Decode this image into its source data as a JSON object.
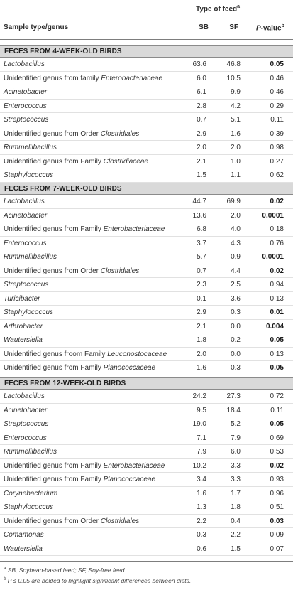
{
  "header": {
    "type_of_feed": "Type of feed",
    "type_of_feed_sup": "a",
    "col_sample": "Sample type/genus",
    "col_sb": "SB",
    "col_sf": "SF",
    "col_p": "P-value",
    "col_p_prefix": "P",
    "col_p_suffix": "-value",
    "col_p_sup": "b"
  },
  "sections": [
    {
      "title": "FECES FROM 4-WEEK-OLD BIRDS",
      "rows": [
        {
          "pre": "",
          "it": "Lactobacillus",
          "sb": "63.6",
          "sf": "46.8",
          "p": "0.05",
          "bold": true
        },
        {
          "pre": "Unidentified genus from family ",
          "it": "Enterobacteriaceae",
          "sb": "6.0",
          "sf": "10.5",
          "p": "0.46",
          "bold": false
        },
        {
          "pre": "",
          "it": "Acinetobacter",
          "sb": "6.1",
          "sf": "9.9",
          "p": "0.46",
          "bold": false
        },
        {
          "pre": "",
          "it": "Enterococcus",
          "sb": "2.8",
          "sf": "4.2",
          "p": "0.29",
          "bold": false
        },
        {
          "pre": "",
          "it": "Streptococcus",
          "sb": "0.7",
          "sf": "5.1",
          "p": "0.11",
          "bold": false
        },
        {
          "pre": "Unidentified genus from Order ",
          "it": "Clostridiales",
          "sb": "2.9",
          "sf": "1.6",
          "p": "0.39",
          "bold": false
        },
        {
          "pre": "",
          "it": "Rummeliibacillus",
          "sb": "2.0",
          "sf": "2.0",
          "p": "0.98",
          "bold": false
        },
        {
          "pre": "Unidentified genus from Family ",
          "it": "Clostridiaceae",
          "sb": "2.1",
          "sf": "1.0",
          "p": "0.27",
          "bold": false
        },
        {
          "pre": "",
          "it": "Staphylococcus",
          "sb": "1.5",
          "sf": "1.1",
          "p": "0.62",
          "bold": false
        }
      ]
    },
    {
      "title": "FECES FROM 7-WEEK-OLD BIRDS",
      "rows": [
        {
          "pre": "",
          "it": "Lactobacillus",
          "sb": "44.7",
          "sf": "69.9",
          "p": "0.02",
          "bold": true
        },
        {
          "pre": "",
          "it": "Acinetobacter",
          "sb": "13.6",
          "sf": "2.0",
          "p": "0.0001",
          "bold": true
        },
        {
          "pre": "Unidentified genus from Family ",
          "it": "Enterobacteriaceae",
          "sb": "6.8",
          "sf": "4.0",
          "p": "0.18",
          "bold": false
        },
        {
          "pre": "",
          "it": "Enterococcus",
          "sb": "3.7",
          "sf": "4.3",
          "p": "0.76",
          "bold": false
        },
        {
          "pre": "",
          "it": "Rummeliibacillus",
          "sb": "5.7",
          "sf": "0.9",
          "p": "0.0001",
          "bold": true
        },
        {
          "pre": "Unidentified genus from Order ",
          "it": "Clostridiales",
          "sb": "0.7",
          "sf": "4.4",
          "p": "0.02",
          "bold": true
        },
        {
          "pre": "",
          "it": "Streptococcus",
          "sb": "2.3",
          "sf": "2.5",
          "p": "0.94",
          "bold": false
        },
        {
          "pre": "",
          "it": "Turicibacter",
          "sb": "0.1",
          "sf": "3.6",
          "p": "0.13",
          "bold": false
        },
        {
          "pre": "",
          "it": "Staphylococcus",
          "sb": "2.9",
          "sf": "0.3",
          "p": "0.01",
          "bold": true
        },
        {
          "pre": "",
          "it": "Arthrobacter",
          "sb": "2.1",
          "sf": "0.0",
          "p": "0.004",
          "bold": true
        },
        {
          "pre": "",
          "it": "Wautersiella",
          "sb": "1.8",
          "sf": "0.2",
          "p": "0.05",
          "bold": true
        },
        {
          "pre": "Unidentified genus froom Family ",
          "it": "Leuconostocaceae",
          "sb": "2.0",
          "sf": "0.0",
          "p": "0.13",
          "bold": false
        },
        {
          "pre": "Unidentified genus from Family ",
          "it": "Planococcaceae",
          "sb": "1.6",
          "sf": "0.3",
          "p": "0.05",
          "bold": true
        }
      ]
    },
    {
      "title": "FECES FROM 12-WEEK-OLD BIRDS",
      "rows": [
        {
          "pre": "",
          "it": "Lactobacillus",
          "sb": "24.2",
          "sf": "27.3",
          "p": "0.72",
          "bold": false
        },
        {
          "pre": "",
          "it": "Acinetobacter",
          "sb": "9.5",
          "sf": "18.4",
          "p": "0.11",
          "bold": false
        },
        {
          "pre": "",
          "it": "Streptococcus",
          "sb": "19.0",
          "sf": "5.2",
          "p": "0.05",
          "bold": true
        },
        {
          "pre": "",
          "it": "Enterococcus",
          "sb": "7.1",
          "sf": "7.9",
          "p": "0.69",
          "bold": false
        },
        {
          "pre": "",
          "it": "Rummeliibacillus",
          "sb": "7.9",
          "sf": "6.0",
          "sf_": "",
          "p": "0.53",
          "bold": false
        },
        {
          "pre": "Unidentified genus from Family ",
          "it": "Enterobacteriaceae",
          "sb": "10.2",
          "sf": "3.3",
          "p": "0.02",
          "bold": true
        },
        {
          "pre": "Unidentified genus from Family ",
          "it": "Planococcaceae",
          "sb": "3.4",
          "sf": "3.3",
          "p": "0.93",
          "bold": false
        },
        {
          "pre": "",
          "it": "Corynebacterium",
          "sb": "1.6",
          "sf": "1.7",
          "p": "0.96",
          "bold": false
        },
        {
          "pre": "",
          "it": "Staphylococcus",
          "sb": "1.3",
          "sf": "1.8",
          "p": "0.51",
          "bold": false
        },
        {
          "pre": "Unidentified genus from Order ",
          "it": "Clostridiales",
          "sb": "2.2",
          "sf": "0.4",
          "p": "0.03",
          "bold": true
        },
        {
          "pre": "",
          "it": "Comamonas",
          "sb": "0.3",
          "sf": "2.2",
          "p": "0.09",
          "bold": false
        },
        {
          "pre": "",
          "it": "Wautersiella",
          "sb": "0.6",
          "sf": "1.5",
          "p": "0.07",
          "bold": false
        }
      ]
    }
  ],
  "footnotes": [
    {
      "sup": "a",
      "text": " SB, Soybean-based feed; SF, Soy-free feed."
    },
    {
      "sup": "b",
      "text": " P ≤ 0.05 are bolded to highlight significant differences between diets."
    }
  ]
}
